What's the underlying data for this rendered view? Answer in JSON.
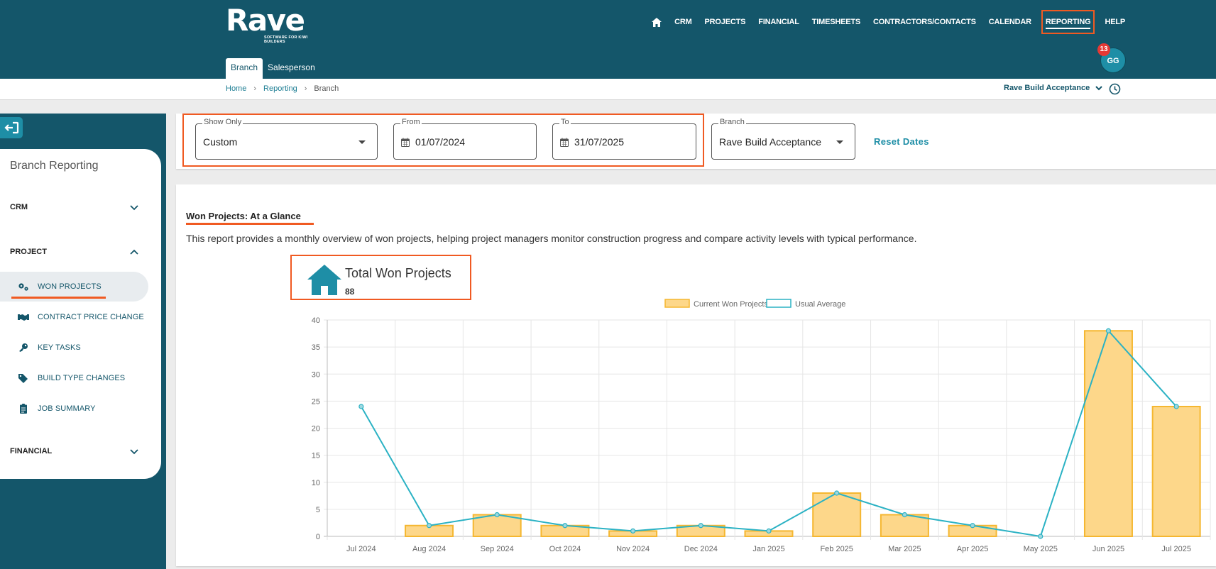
{
  "brand": {
    "name": "Rave",
    "tagline": "SOFTWARE FOR KIWI BUILDERS"
  },
  "nav": {
    "home_icon": "home-icon",
    "items": [
      "CRM",
      "PROJECTS",
      "FINANCIAL",
      "TIMESHEETS",
      "CONTRACTORS/CONTACTS",
      "CALENDAR"
    ],
    "active": "REPORTING",
    "help": "HELP"
  },
  "tabs": {
    "branch": "Branch",
    "salesperson": "Salesperson"
  },
  "user": {
    "initials": "GG",
    "notifications": "13"
  },
  "breadcrumb": {
    "home": "Home",
    "reporting": "Reporting",
    "current": "Branch",
    "separator": "›"
  },
  "branch_selector": {
    "value": "Rave Build Acceptance"
  },
  "sidebar": {
    "title": "Branch Reporting",
    "sections": {
      "crm": "CRM",
      "project": "PROJECT",
      "financial": "FINANCIAL"
    },
    "items": [
      {
        "label": "WON PROJECTS",
        "icon": "cogs-icon"
      },
      {
        "label": "CONTRACT PRICE CHANGE",
        "icon": "handshake-icon"
      },
      {
        "label": "KEY TASKS",
        "icon": "key-icon"
      },
      {
        "label": "BUILD TYPE CHANGES",
        "icon": "tags-icon"
      },
      {
        "label": "JOB SUMMARY",
        "icon": "clipboard-icon"
      }
    ]
  },
  "filters": {
    "show_only": {
      "label": "Show Only",
      "value": "Custom"
    },
    "from": {
      "label": "From",
      "value": "01/07/2024"
    },
    "to": {
      "label": "To",
      "value": "31/07/2025"
    },
    "branch": {
      "label": "Branch",
      "value": "Rave Build Acceptance"
    },
    "reset": "Reset Dates"
  },
  "report": {
    "title": "Won Projects: At a Glance",
    "description": "This report provides a monthly overview of won projects, helping project managers monitor construction progress and compare activity levels with typical performance.",
    "total_label": "Total Won Projects",
    "total_value": "88"
  },
  "colors": {
    "primary": "#14566a",
    "accent": "#f05a22",
    "teal": "#1e8ea6",
    "bar_fill": "#fdd78a",
    "bar_stroke": "#f5b731",
    "line": "#2bb2c4"
  },
  "chart_data": {
    "type": "bar",
    "categories": [
      "Jul 2024",
      "Aug 2024",
      "Sep 2024",
      "Oct 2024",
      "Nov 2024",
      "Dec 2024",
      "Jan 2025",
      "Feb 2025",
      "Mar 2025",
      "Apr 2025",
      "May 2025",
      "Jun 2025",
      "Jul 2025"
    ],
    "series": [
      {
        "name": "Current Won Projects",
        "type": "bar",
        "values": [
          0,
          2,
          4,
          2,
          1,
          2,
          1,
          8,
          4,
          2,
          0,
          38,
          24
        ]
      },
      {
        "name": "Usual Average",
        "type": "line",
        "values": [
          24,
          2,
          4,
          2,
          1,
          2,
          1,
          8,
          4,
          2,
          0,
          38,
          24
        ]
      }
    ],
    "ylim": [
      0,
      40
    ],
    "yticks": [
      0,
      5,
      10,
      15,
      20,
      25,
      30,
      35,
      40
    ],
    "legend": "top",
    "grid": true
  }
}
